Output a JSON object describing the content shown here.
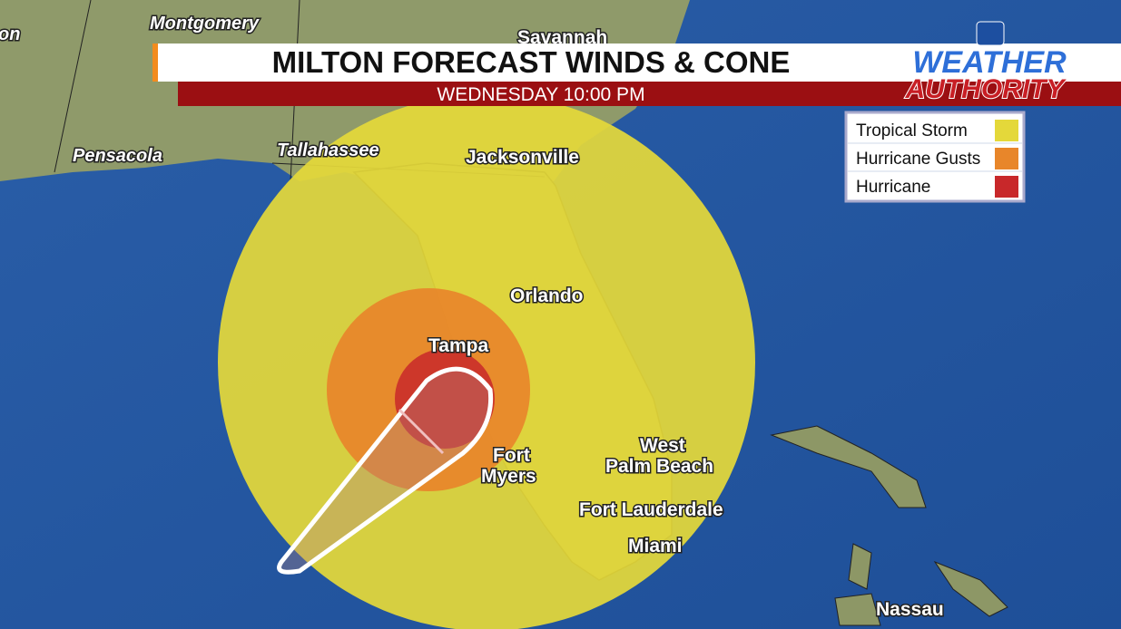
{
  "header": {
    "title": "MILTON FORECAST WINDS & CONE",
    "subtitle": "WEDNESDAY 10:00 PM"
  },
  "logo": {
    "line1": "WEATHER",
    "line2": "AUTHORITY"
  },
  "legend": [
    {
      "label": "Tropical Storm",
      "color": "#e4d83a"
    },
    {
      "label": "Hurricane Gusts",
      "color": "#e8862a"
    },
    {
      "label": "Hurricane",
      "color": "#c8282a"
    }
  ],
  "cities": [
    {
      "lines": [
        "on"
      ]
    },
    {
      "lines": [
        "Montgomery"
      ]
    },
    {
      "lines": [
        "Savannah"
      ]
    },
    {
      "lines": [
        "Pensacola"
      ]
    },
    {
      "lines": [
        "Tallahassee"
      ]
    },
    {
      "lines": [
        "Jacksonville"
      ]
    },
    {
      "lines": [
        "Orlando"
      ]
    },
    {
      "lines": [
        "Tampa"
      ]
    },
    {
      "lines": [
        "Fort",
        "Myers"
      ]
    },
    {
      "lines": [
        "West",
        "Palm Beach"
      ]
    },
    {
      "lines": [
        "Fort Lauderdale"
      ]
    },
    {
      "lines": [
        "Miami"
      ]
    },
    {
      "lines": [
        "Nassau"
      ]
    }
  ]
}
